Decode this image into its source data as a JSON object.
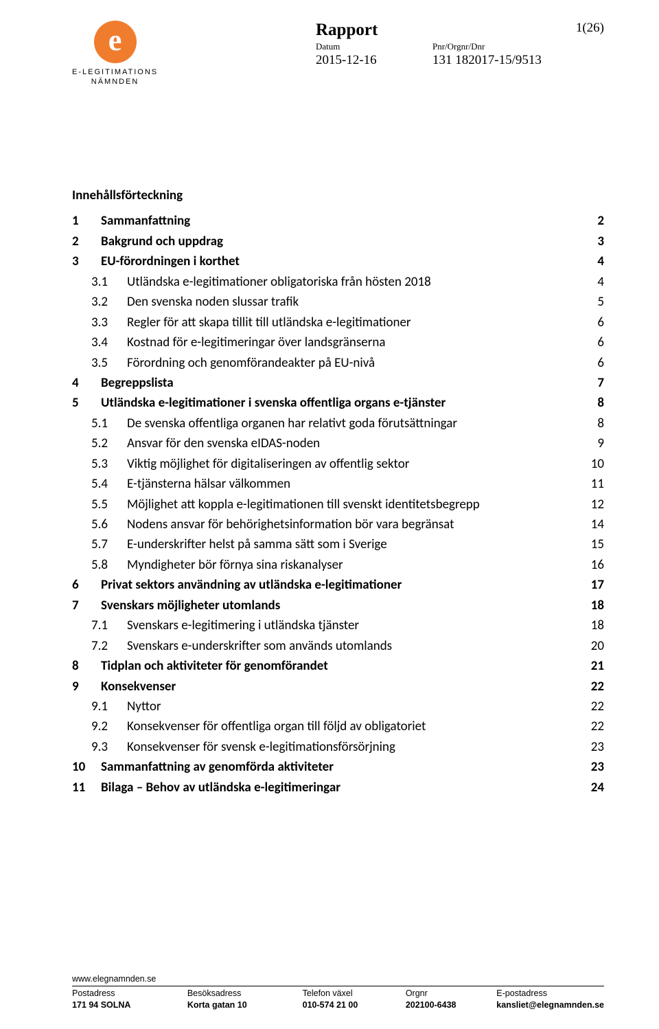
{
  "colors": {
    "logo_circle": "#f07d2e",
    "logo_text": "#ffffff",
    "text": "#000000",
    "rule": "#000000",
    "background": "#ffffff"
  },
  "logo": {
    "glyph": "e",
    "line1": "E-LEGITIMATIONS",
    "line2": "NÄMNDEN"
  },
  "header": {
    "title": "Rapport",
    "date_label": "Datum",
    "date_value": "2015-12-16",
    "ref_label": "Pnr/Orgnr/Dnr",
    "ref_value": "131 182017-15/9513",
    "page_num": "1(26)"
  },
  "toc": {
    "title": "Innehållsförteckning",
    "items": [
      {
        "level": 1,
        "num": "1",
        "text": "Sammanfattning",
        "page": "2"
      },
      {
        "level": 1,
        "num": "2",
        "text": "Bakgrund och uppdrag",
        "page": "3"
      },
      {
        "level": 1,
        "num": "3",
        "text": "EU-förordningen i korthet",
        "page": "4"
      },
      {
        "level": 2,
        "num": "3.1",
        "text": "Utländska e-legitimationer obligatoriska från hösten 2018",
        "page": "4"
      },
      {
        "level": 2,
        "num": "3.2",
        "text": "Den svenska noden slussar trafik",
        "page": "5"
      },
      {
        "level": 2,
        "num": "3.3",
        "text": "Regler för att skapa tillit till utländska e-legitimationer",
        "page": "6"
      },
      {
        "level": 2,
        "num": "3.4",
        "text": "Kostnad för e-legitimeringar över landsgränserna",
        "page": "6"
      },
      {
        "level": 2,
        "num": "3.5",
        "text": "Förordning och genomförandeakter på EU-nivå",
        "page": "6"
      },
      {
        "level": 1,
        "num": "4",
        "text": "Begreppslista",
        "page": "7"
      },
      {
        "level": 1,
        "num": "5",
        "text": "Utländska e-legitimationer i svenska offentliga organs e-tjänster",
        "page": "8"
      },
      {
        "level": 2,
        "num": "5.1",
        "text": "De svenska offentliga organen har relativt goda förutsättningar",
        "page": "8"
      },
      {
        "level": 2,
        "num": "5.2",
        "text": "Ansvar för den svenska eIDAS-noden",
        "page": "9"
      },
      {
        "level": 2,
        "num": "5.3",
        "text": "Viktig möjlighet för digitaliseringen av offentlig sektor",
        "page": "10"
      },
      {
        "level": 2,
        "num": "5.4",
        "text": "E-tjänsterna hälsar välkommen",
        "page": "11"
      },
      {
        "level": 2,
        "num": "5.5",
        "text": "Möjlighet att koppla e-legitimationen till svenskt identitetsbegrepp",
        "page": "12"
      },
      {
        "level": 2,
        "num": "5.6",
        "text": "Nodens ansvar för behörighetsinformation bör vara begränsat",
        "page": "14"
      },
      {
        "level": 2,
        "num": "5.7",
        "text": "E-underskrifter helst på samma sätt som i Sverige",
        "page": "15"
      },
      {
        "level": 2,
        "num": "5.8",
        "text": "Myndigheter bör förnya sina riskanalyser",
        "page": "16"
      },
      {
        "level": 1,
        "num": "6",
        "text": "Privat sektors användning av utländska e-legitimationer",
        "page": "17"
      },
      {
        "level": 1,
        "num": "7",
        "text": "Svenskars möjligheter utomlands",
        "page": "18"
      },
      {
        "level": 2,
        "num": "7.1",
        "text": "Svenskars e-legitimering i utländska tjänster",
        "page": "18"
      },
      {
        "level": 2,
        "num": "7.2",
        "text": "Svenskars e-underskrifter som används utomlands",
        "page": "20"
      },
      {
        "level": 1,
        "num": "8",
        "text": "Tidplan och aktiviteter för genomförandet",
        "page": "21"
      },
      {
        "level": 1,
        "num": "9",
        "text": "Konsekvenser",
        "page": "22"
      },
      {
        "level": 2,
        "num": "9.1",
        "text": "Nyttor",
        "page": "22"
      },
      {
        "level": 2,
        "num": "9.2",
        "text": "Konsekvenser för offentliga organ till följd av obligatoriet",
        "page": "22"
      },
      {
        "level": 2,
        "num": "9.3",
        "text": "Konsekvenser för svensk e-legitimationsförsörjning",
        "page": "23"
      },
      {
        "level": 1,
        "num": "10",
        "text": "Sammanfattning av genomförda aktiviteter",
        "page": "23"
      },
      {
        "level": 1,
        "num": "11",
        "text": "Bilaga – Behov av utländska e-legitimeringar",
        "page": "24"
      }
    ]
  },
  "footer": {
    "website": "www.elegnamnden.se",
    "columns": [
      {
        "label": "Postadress",
        "value": "171 94  SOLNA"
      },
      {
        "label": "Besöksadress",
        "value": "Korta gatan 10"
      },
      {
        "label": "Telefon växel",
        "value": "010-574 21 00"
      },
      {
        "label": "Orgnr",
        "value": "202100-6438"
      },
      {
        "label": "E-postadress",
        "value": "kansliet@elegnamnden.se"
      }
    ]
  }
}
